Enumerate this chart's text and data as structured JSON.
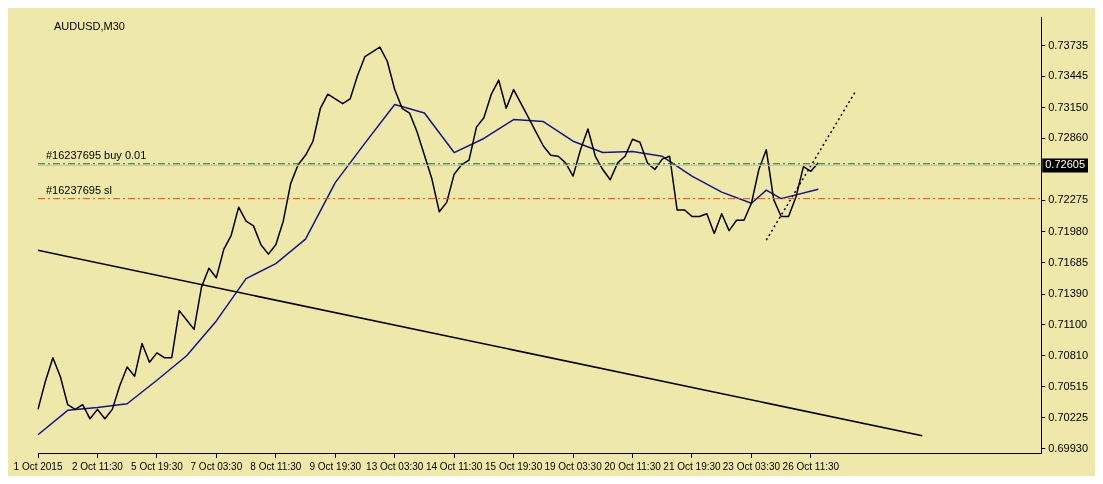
{
  "chart_data": {
    "type": "line",
    "title": "AUDUSD,M30",
    "categories": [
      "1 Oct 2015",
      null,
      null,
      null,
      null,
      null,
      null,
      null,
      "2 Oct 11:30",
      null,
      null,
      null,
      null,
      null,
      null,
      null,
      "5 Oct 19:30",
      null,
      null,
      null,
      null,
      null,
      null,
      null,
      "7 Oct 03:30",
      null,
      null,
      null,
      null,
      null,
      null,
      null,
      "8 Oct 11:30",
      null,
      null,
      null,
      null,
      null,
      null,
      null,
      "9 Oct 19:30",
      null,
      null,
      null,
      null,
      null,
      null,
      null,
      "13 Oct 03:30",
      null,
      null,
      null,
      null,
      null,
      null,
      null,
      "14 Oct 11:30",
      null,
      null,
      null,
      null,
      null,
      null,
      null,
      "15 Oct 19:30",
      null,
      null,
      null,
      null,
      null,
      null,
      null,
      "19 Oct 03:30",
      null,
      null,
      null,
      null,
      null,
      null,
      null,
      "20 Oct 11:30",
      null,
      null,
      null,
      null,
      null,
      null,
      null,
      "21 Oct 19:30",
      null,
      null,
      null,
      null,
      null,
      null,
      null,
      "23 Oct 03:30",
      null,
      null,
      null,
      null,
      null,
      null,
      null,
      "26 Oct 11:30",
      null,
      null,
      null,
      null,
      null,
      null,
      null,
      null,
      null,
      null,
      null,
      null,
      null,
      null,
      null,
      null,
      null,
      null,
      null,
      null,
      null,
      null,
      null,
      null,
      null,
      null,
      null,
      null,
      null,
      null,
      null
    ],
    "series": [
      {
        "color": "#000000",
        "values": [
          0.70302,
          0.70568,
          0.7079,
          0.70613,
          0.70346,
          0.70302,
          0.70346,
          0.70213,
          0.70302,
          0.70213,
          0.70302,
          0.70524,
          0.70702,
          0.70613,
          0.70924,
          0.70746,
          0.70835,
          0.7079,
          0.7079,
          0.71234,
          0.71146,
          0.71057,
          0.71456,
          0.71634,
          0.71545,
          0.71812,
          0.71945,
          0.72211,
          0.72078,
          0.72034,
          0.71856,
          0.71767,
          0.71856,
          0.72078,
          0.72433,
          0.72611,
          0.727,
          0.72833,
          0.73144,
          0.73277,
          0.73232,
          0.73188,
          0.73232,
          0.73454,
          0.73632,
          0.73676,
          0.73721,
          0.73588,
          0.73321,
          0.73144,
          0.73099,
          0.72922,
          0.727,
          0.72478,
          0.72167,
          0.72256,
          0.72522,
          0.72611,
          0.72655,
          0.72966,
          0.73055,
          0.73277,
          0.7341,
          0.73144,
          0.73321,
          0.73188,
          0.73055,
          0.72922,
          0.72788,
          0.727,
          0.72691,
          0.72629,
          0.72504,
          0.72753,
          0.72948,
          0.72691,
          0.72566,
          0.72469,
          0.72629,
          0.72691,
          0.72851,
          0.72824,
          0.72629,
          0.72566,
          0.72664,
          0.72691,
          0.72185,
          0.72185,
          0.72122,
          0.72122,
          0.72149,
          0.71963,
          0.72149,
          0.71989,
          0.72087,
          0.72087,
          0.72247,
          0.72566,
          0.72753,
          0.72282,
          0.72122,
          0.72122,
          0.72309,
          0.72593,
          0.72549,
          0.72629,
          null,
          null,
          null,
          null,
          null,
          null,
          null,
          null,
          null,
          null,
          null,
          null,
          null,
          null,
          null,
          null,
          null,
          null,
          null,
          null,
          null,
          null,
          null,
          null,
          null,
          null,
          null,
          null,
          null,
          null
        ]
      },
      {
        "color": "#14148c",
        "values": [
          0.70062,
          null,
          null,
          null,
          0.70293,
          null,
          null,
          null,
          0.7032,
          null,
          null,
          null,
          0.70355,
          null,
          null,
          null,
          0.70577,
          null,
          null,
          null,
          0.70808,
          null,
          null,
          null,
          0.71137,
          null,
          null,
          null,
          0.71536,
          null,
          null,
          null,
          0.71678,
          null,
          null,
          null,
          0.71909,
          null,
          null,
          null,
          0.72442,
          null,
          null,
          null,
          0.72815,
          null,
          null,
          null,
          0.73179,
          null,
          null,
          null,
          0.73099,
          null,
          null,
          null,
          0.72726,
          null,
          null,
          null,
          0.72859,
          null,
          null,
          null,
          0.73037,
          null,
          null,
          null,
          0.73019,
          null,
          null,
          null,
          0.72833,
          null,
          null,
          null,
          0.72726,
          null,
          null,
          null,
          0.72735,
          null,
          null,
          null,
          0.72691,
          null,
          null,
          null,
          0.72504,
          null,
          null,
          null,
          0.72353,
          null,
          null,
          null,
          0.72247,
          null,
          0.72371,
          null,
          0.72291,
          null,
          null,
          null,
          null,
          0.7238,
          null,
          null,
          null,
          null,
          null,
          null,
          null,
          null,
          null,
          null,
          null,
          null,
          null,
          null,
          null,
          null,
          null,
          null,
          null,
          null,
          null,
          null,
          null,
          null,
          null,
          null,
          null,
          null,
          null,
          null
        ]
      },
      {
        "type": "line",
        "color": "#000000",
        "values": [
          0.71803,
          null,
          null,
          null,
          null,
          null,
          null,
          null,
          null,
          null,
          null,
          null,
          null,
          null,
          null,
          null,
          null,
          null,
          null,
          null,
          null,
          null,
          null,
          null,
          null,
          null,
          null,
          null,
          null,
          null,
          null,
          null,
          null,
          null,
          null,
          null,
          null,
          null,
          null,
          null,
          null,
          null,
          null,
          null,
          null,
          null,
          null,
          null,
          null,
          null,
          null,
          null,
          null,
          null,
          null,
          null,
          null,
          null,
          null,
          null,
          null,
          null,
          null,
          null,
          null,
          null,
          null,
          null,
          null,
          null,
          null,
          null,
          null,
          null,
          null,
          null,
          null,
          null,
          null,
          null,
          null,
          null,
          null,
          null,
          null,
          null,
          null,
          null,
          null,
          null,
          null,
          null,
          null,
          null,
          null,
          null,
          null,
          null,
          null,
          null,
          null,
          null,
          null,
          null,
          null,
          null,
          null,
          null,
          null,
          null,
          null,
          null,
          null,
          null,
          null,
          null,
          null,
          null,
          null,
          0.70053,
          null,
          null,
          null,
          null,
          null,
          null,
          null,
          null,
          null,
          null,
          null,
          null,
          null,
          null,
          null,
          null
        ]
      },
      {
        "type": "line",
        "color": "#000000",
        "line_style": "dotted",
        "values": [
          null,
          null,
          null,
          null,
          null,
          null,
          null,
          null,
          null,
          null,
          null,
          null,
          null,
          null,
          null,
          null,
          null,
          null,
          null,
          null,
          null,
          null,
          null,
          null,
          null,
          null,
          null,
          null,
          null,
          null,
          null,
          null,
          null,
          null,
          null,
          null,
          null,
          null,
          null,
          null,
          null,
          null,
          null,
          null,
          null,
          null,
          null,
          null,
          null,
          null,
          null,
          null,
          null,
          null,
          null,
          null,
          null,
          null,
          null,
          null,
          null,
          null,
          null,
          null,
          null,
          null,
          null,
          null,
          null,
          null,
          null,
          null,
          null,
          null,
          null,
          null,
          null,
          null,
          null,
          null,
          null,
          null,
          null,
          null,
          null,
          null,
          null,
          null,
          null,
          null,
          null,
          null,
          null,
          null,
          null,
          null,
          null,
          null,
          0.719,
          null,
          null,
          null,
          null,
          null,
          null,
          null,
          null,
          null,
          null,
          null,
          0.73303,
          null,
          null,
          null,
          null,
          null,
          null,
          null,
          null,
          null,
          null,
          null,
          null,
          null,
          null,
          null,
          null,
          null,
          null,
          null,
          null,
          null,
          null,
          null,
          null,
          null
        ]
      }
    ],
    "ylim": [
      0.6989,
      0.74
    ],
    "yticks": [
      {
        "value": 0.73735,
        "label": "0.73735"
      },
      {
        "value": 0.73445,
        "label": "0.73445"
      },
      {
        "value": 0.7315,
        "label": "0.73150"
      },
      {
        "value": 0.7286,
        "label": "0.72860"
      },
      {
        "value": 0.72275,
        "label": "0.72275"
      },
      {
        "value": 0.7198,
        "label": "0.71980"
      },
      {
        "value": 0.71685,
        "label": "0.71685"
      },
      {
        "value": 0.7139,
        "label": "0.71390"
      },
      {
        "value": 0.711,
        "label": "0.71100"
      },
      {
        "value": 0.7081,
        "label": "0.70810"
      },
      {
        "value": 0.70515,
        "label": "0.70515"
      },
      {
        "value": 0.70225,
        "label": "0.70225"
      },
      {
        "value": 0.6993,
        "label": "0.69930"
      }
    ],
    "ref_lines": [
      {
        "axis": "y",
        "value": 0.7262,
        "label": "#16237695 buy 0.01",
        "color": "#008000",
        "line_style": "dashed"
      },
      {
        "axis": "y",
        "value": 0.72605,
        "label": "0.72605",
        "color": "#c0c0c0",
        "line_style": "solid"
      },
      {
        "axis": "y",
        "value": 0.72291,
        "label": "#16237695 sl",
        "color": "#ff4500",
        "line_style": "dashed"
      }
    ],
    "grid": false,
    "legend": false
  }
}
